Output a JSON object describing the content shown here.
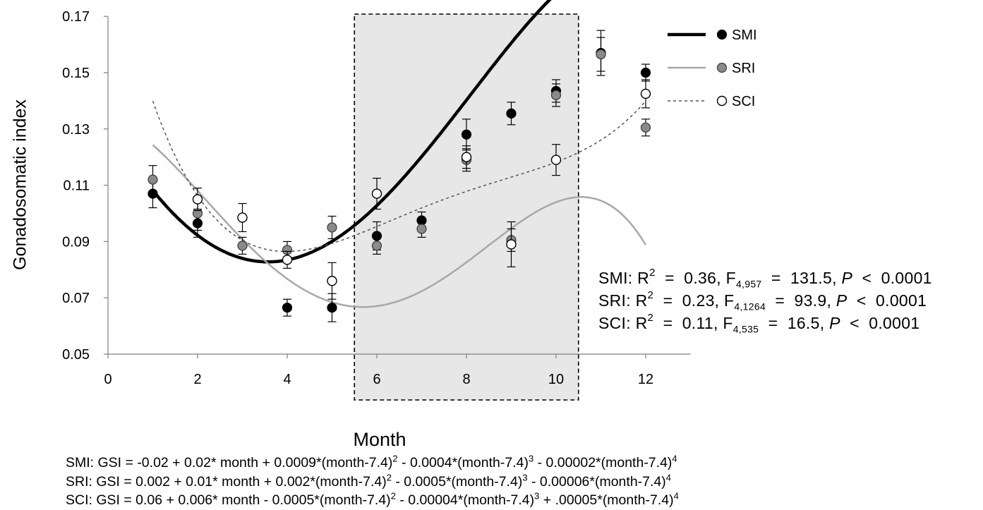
{
  "chart_data": {
    "type": "scatter",
    "xlabel": "Month",
    "ylabel": "Gonadosomatic index",
    "xlim": [
      0,
      13
    ],
    "ylim": [
      0.05,
      0.17
    ],
    "xticks": [
      "0",
      "2",
      "4",
      "6",
      "8",
      "10",
      "12"
    ],
    "yticks": [
      "0.05",
      "0.07",
      "0.09",
      "0.11",
      "0.13",
      "0.15",
      "0.17"
    ],
    "shaded_region": [
      5.5,
      10.5
    ],
    "legend_position": "top-right",
    "series": [
      {
        "name": "SMI",
        "marker": "filled-black",
        "line": "solid-thick-black",
        "x": [
          1,
          2,
          4,
          5,
          6,
          7,
          8,
          9,
          10,
          11,
          12
        ],
        "y": [
          0.107,
          0.0965,
          0.0665,
          0.0665,
          0.092,
          0.0975,
          0.128,
          0.1355,
          0.1435,
          0.157,
          0.15
        ],
        "err": [
          0.005,
          0.005,
          0.003,
          0.005,
          0.005,
          0.003,
          0.0055,
          0.004,
          0.004,
          0.008,
          0.003
        ],
        "fit_coeffs": [
          -0.02,
          0.02,
          0.0009,
          -0.0004,
          -2e-05
        ]
      },
      {
        "name": "SRI",
        "marker": "filled-gray",
        "line": "solid-gray",
        "x": [
          1,
          2,
          3,
          4,
          5,
          6,
          7,
          8,
          9,
          10,
          11,
          12
        ],
        "y": [
          0.112,
          0.1,
          0.0885,
          0.087,
          0.095,
          0.0885,
          0.0945,
          0.119,
          0.0905,
          0.142,
          0.1565,
          0.1305
        ],
        "err": [
          0.005,
          0.006,
          0.003,
          0.003,
          0.004,
          0.003,
          0.003,
          0.004,
          0.004,
          0.004,
          0.006,
          0.003
        ],
        "fit_coeffs": [
          0.002,
          0.01,
          0.002,
          -0.0005,
          -6e-05
        ]
      },
      {
        "name": "SCI",
        "marker": "open-circle",
        "line": "dashed-thin",
        "x": [
          2,
          3,
          4,
          5,
          6,
          8,
          9,
          10,
          12
        ],
        "y": [
          0.105,
          0.0985,
          0.0835,
          0.076,
          0.107,
          0.12,
          0.089,
          0.119,
          0.1425
        ],
        "err": [
          0.004,
          0.005,
          0.003,
          0.0065,
          0.0055,
          0.004,
          0.008,
          0.0055,
          0.005
        ],
        "fit_coeffs": [
          0.06,
          0.006,
          -0.0005,
          -4e-05,
          5e-05
        ]
      }
    ]
  },
  "stats": [
    {
      "site": "SMI",
      "r2": "0.36",
      "df": "4,957",
      "F": "131.5",
      "p": "0.0001"
    },
    {
      "site": "SRI",
      "r2": "0.23",
      "df": "4,1264",
      "F": "93.9",
      "p": "0.0001"
    },
    {
      "site": "SCI",
      "r2": "0.11",
      "df": "4,535",
      "F": "16.5",
      "p": "0.0001"
    }
  ],
  "equations": [
    {
      "site": "SMI",
      "parts": [
        "SMI: GSI  =  -0.02 + 0.02* month + 0.0009*(month-7.4)",
        "2",
        " - 0.0004*(month-7.4)",
        "3",
        " - 0.00002*(month-7.4)",
        "4"
      ]
    },
    {
      "site": "SRI",
      "parts": [
        "SRI: GSI  =  0.002 + 0.01* month + 0.002*(month-7.4)",
        "2",
        " - 0.0005*(month-7.4)",
        "3",
        " - 0.00006*(month-7.4)",
        "4"
      ]
    },
    {
      "site": "SCI",
      "parts": [
        "SCI: GSI  =  0.06 + 0.006* month - 0.0005*(month-7.4)",
        "2",
        " - 0.00004*(month-7.4)",
        "3",
        " + .00005*(month-7.4)",
        "4"
      ]
    }
  ]
}
